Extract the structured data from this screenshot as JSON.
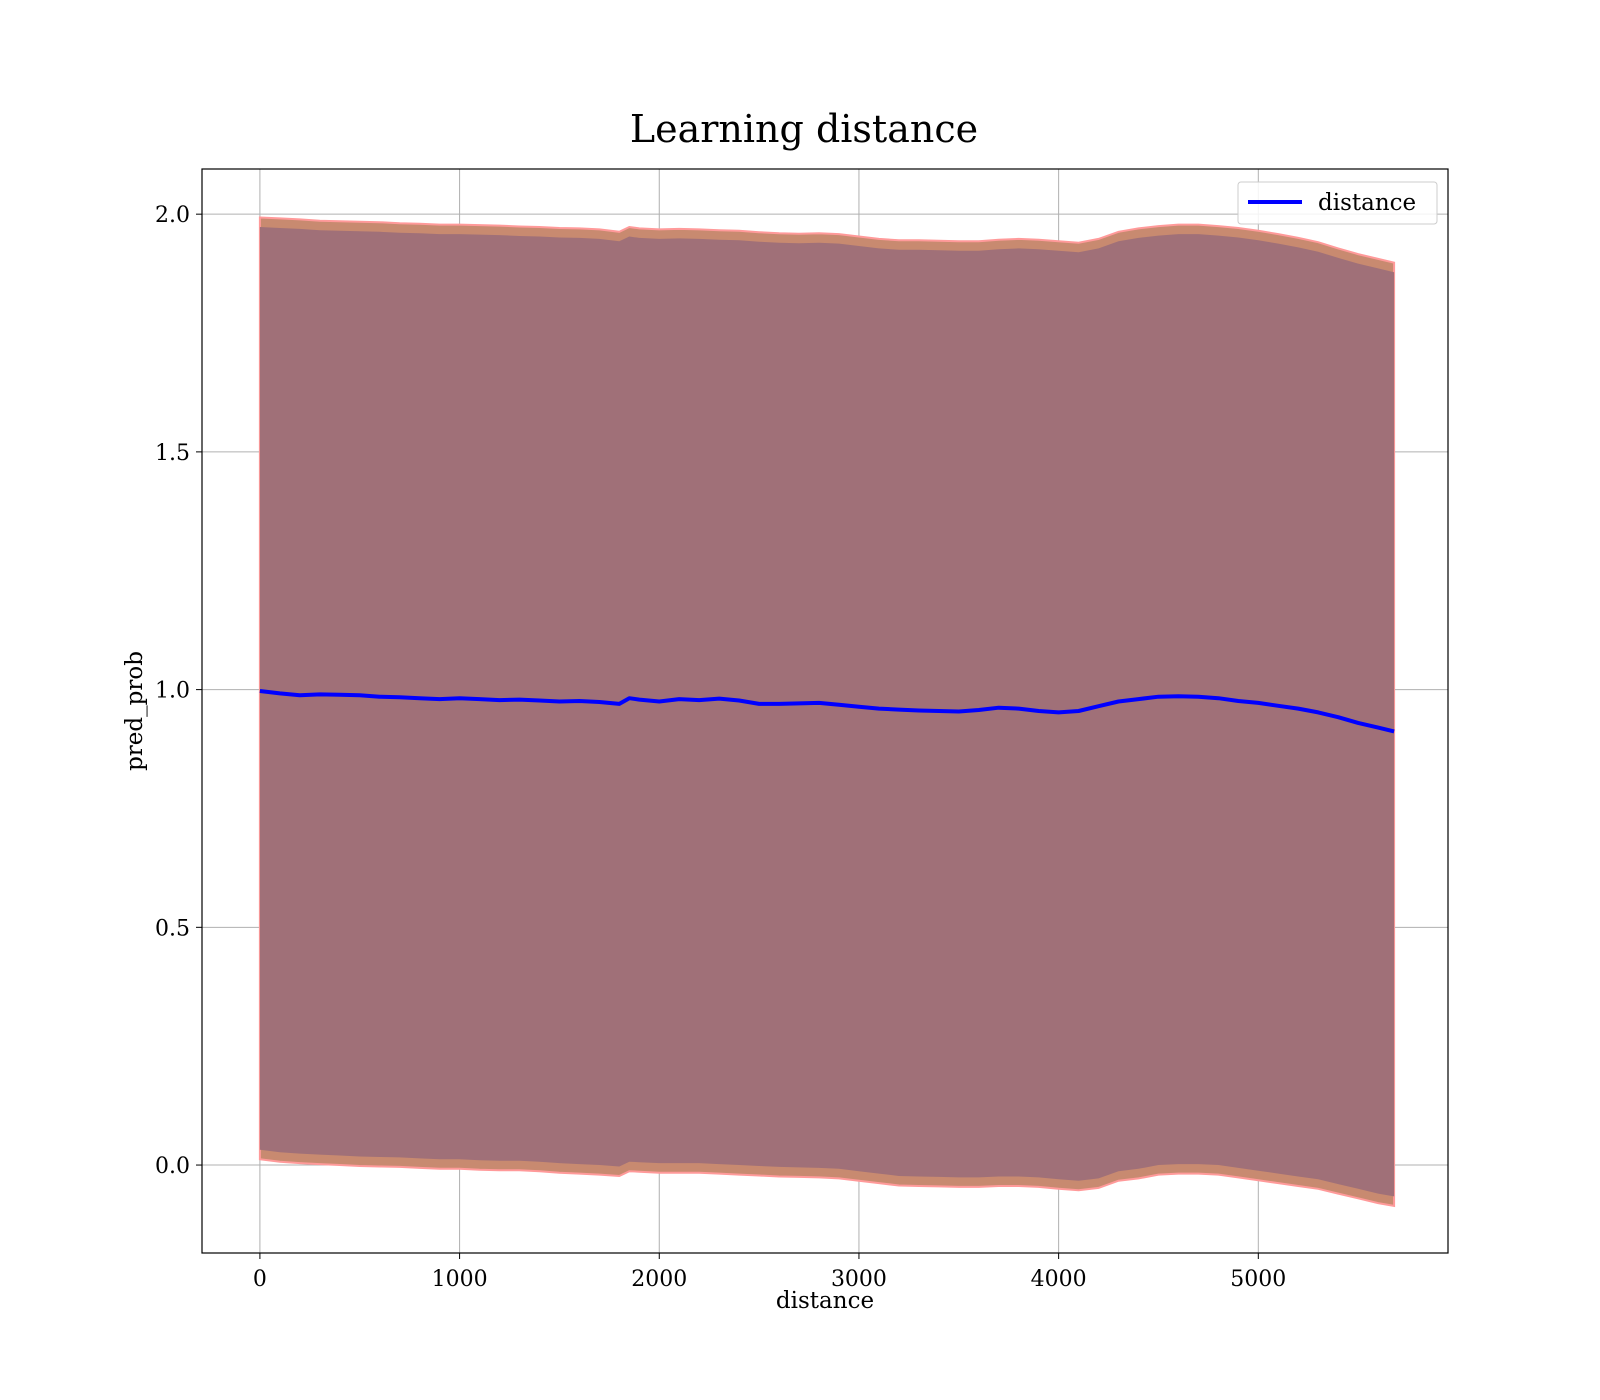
{
  "chart_data": {
    "type": "line",
    "title": "Learning distance",
    "xlabel": "distance",
    "ylabel": "pred_prob",
    "xlim": [
      -290,
      5950
    ],
    "ylim": [
      -0.185,
      2.095
    ],
    "xticks": [
      0,
      1000,
      2000,
      3000,
      4000,
      5000
    ],
    "xtick_labels": [
      "0",
      "1000",
      "2000",
      "3000",
      "4000",
      "5000"
    ],
    "yticks": [
      0.0,
      0.5,
      1.0,
      1.5,
      2.0
    ],
    "ytick_labels": [
      "0.0",
      "0.5",
      "1.0",
      "1.5",
      "2.0"
    ],
    "grid": true,
    "legend": {
      "placement": "top-right",
      "entries": [
        "distance"
      ]
    },
    "colors": {
      "line": "#0000ff",
      "band_fill": "#a07078",
      "band_fringe": "#c88a70",
      "band_edge": "#ff9a9a"
    },
    "series": [
      {
        "name": "distance",
        "x": [
          0,
          100,
          200,
          300,
          400,
          500,
          600,
          700,
          800,
          900,
          1000,
          1100,
          1200,
          1300,
          1400,
          1500,
          1600,
          1700,
          1800,
          1850,
          1900,
          2000,
          2100,
          2200,
          2300,
          2400,
          2500,
          2600,
          2700,
          2800,
          2900,
          3000,
          3100,
          3200,
          3300,
          3400,
          3500,
          3600,
          3700,
          3800,
          3900,
          4000,
          4100,
          4200,
          4300,
          4400,
          4500,
          4600,
          4700,
          4800,
          4900,
          5000,
          5100,
          5200,
          5300,
          5400,
          5500,
          5600,
          5680
        ],
        "y": [
          0.997,
          0.992,
          0.988,
          0.99,
          0.989,
          0.988,
          0.985,
          0.984,
          0.982,
          0.98,
          0.982,
          0.98,
          0.978,
          0.979,
          0.977,
          0.975,
          0.976,
          0.974,
          0.97,
          0.982,
          0.979,
          0.975,
          0.98,
          0.978,
          0.981,
          0.977,
          0.97,
          0.97,
          0.971,
          0.972,
          0.968,
          0.964,
          0.96,
          0.958,
          0.956,
          0.955,
          0.954,
          0.957,
          0.962,
          0.96,
          0.955,
          0.952,
          0.955,
          0.965,
          0.975,
          0.98,
          0.985,
          0.986,
          0.985,
          0.982,
          0.976,
          0.972,
          0.966,
          0.96,
          0.952,
          0.942,
          0.93,
          0.92,
          0.912
        ],
        "lower": [
          0.02,
          0.015,
          0.012,
          0.01,
          0.008,
          0.006,
          0.005,
          0.004,
          0.002,
          0.0,
          0.0,
          -0.002,
          -0.003,
          -0.003,
          -0.005,
          -0.008,
          -0.01,
          -0.012,
          -0.015,
          -0.005,
          -0.006,
          -0.008,
          -0.008,
          -0.008,
          -0.01,
          -0.012,
          -0.014,
          -0.016,
          -0.017,
          -0.018,
          -0.02,
          -0.025,
          -0.03,
          -0.035,
          -0.036,
          -0.037,
          -0.038,
          -0.038,
          -0.036,
          -0.036,
          -0.038,
          -0.042,
          -0.045,
          -0.04,
          -0.025,
          -0.02,
          -0.012,
          -0.01,
          -0.01,
          -0.012,
          -0.018,
          -0.024,
          -0.03,
          -0.036,
          -0.042,
          -0.052,
          -0.062,
          -0.072,
          -0.078
        ],
        "upper": [
          1.985,
          1.983,
          1.981,
          1.978,
          1.977,
          1.976,
          1.975,
          1.973,
          1.972,
          1.97,
          1.97,
          1.969,
          1.968,
          1.966,
          1.965,
          1.963,
          1.962,
          1.96,
          1.955,
          1.965,
          1.962,
          1.96,
          1.961,
          1.96,
          1.958,
          1.957,
          1.954,
          1.952,
          1.951,
          1.952,
          1.95,
          1.945,
          1.94,
          1.937,
          1.937,
          1.936,
          1.935,
          1.935,
          1.938,
          1.94,
          1.938,
          1.935,
          1.932,
          1.94,
          1.955,
          1.962,
          1.967,
          1.97,
          1.97,
          1.967,
          1.963,
          1.957,
          1.95,
          1.942,
          1.933,
          1.92,
          1.908,
          1.898,
          1.89
        ]
      }
    ]
  }
}
